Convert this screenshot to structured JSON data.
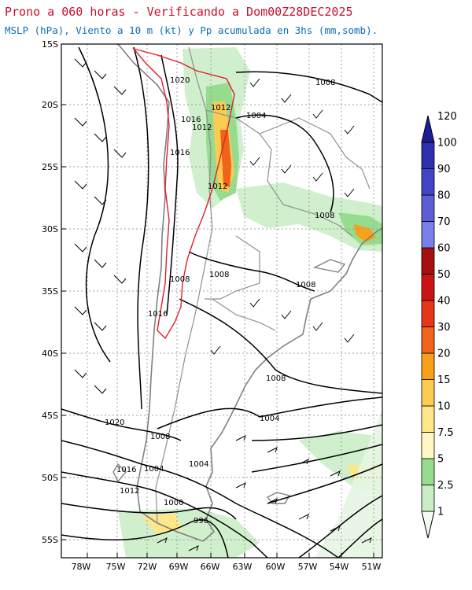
{
  "header": {
    "title": "Prono a 060 horas - Verificando a Dom00Z28DEC2025",
    "subtitle": "MSLP (hPa), Viento a 10 m (kt) y Pp acumulada en 3hs (mm,somb)."
  },
  "map": {
    "lat_labels": [
      "15S",
      "20S",
      "25S",
      "30S",
      "35S",
      "40S",
      "45S",
      "50S",
      "55S"
    ],
    "lon_labels": [
      "78W",
      "75W",
      "72W",
      "69W",
      "66W",
      "63W",
      "60W",
      "57W",
      "54W",
      "51W"
    ],
    "isobar_labels": [
      {
        "text": "1020"
      },
      {
        "text": "1016"
      },
      {
        "text": "1012"
      },
      {
        "text": "1016"
      },
      {
        "text": "1012"
      },
      {
        "text": "1012"
      },
      {
        "text": "1004"
      },
      {
        "text": "1008"
      },
      {
        "text": "1008"
      },
      {
        "text": "1008"
      },
      {
        "text": "1008"
      },
      {
        "text": "1016"
      },
      {
        "text": "1008"
      },
      {
        "text": "1008"
      },
      {
        "text": "1004"
      },
      {
        "text": "1020"
      },
      {
        "text": "1008"
      },
      {
        "text": "1016"
      },
      {
        "text": "1004"
      },
      {
        "text": "1012"
      },
      {
        "text": "1004"
      },
      {
        "text": "1000"
      },
      {
        "text": "996"
      }
    ],
    "colors": {
      "land_outline": "#808080",
      "isobar": "#000000",
      "highland": "#e0202a",
      "grid": "#a0a0a0"
    }
  },
  "colorbar": {
    "labels": [
      "1",
      "2.5",
      "5",
      "7.5",
      "10",
      "15",
      "20",
      "30",
      "40",
      "50",
      "60",
      "70",
      "80",
      "90",
      "100",
      "120"
    ],
    "colors": [
      "#f4fbf2",
      "#c8ecc3",
      "#96dc8f",
      "#fff7c4",
      "#fde78a",
      "#fbcb52",
      "#f7a019",
      "#f0631a",
      "#e53618",
      "#cc1414",
      "#a50f0f",
      "#7b7de8",
      "#5d5ed6",
      "#4343c6",
      "#2f2fb0",
      "#1c1c96"
    ]
  }
}
